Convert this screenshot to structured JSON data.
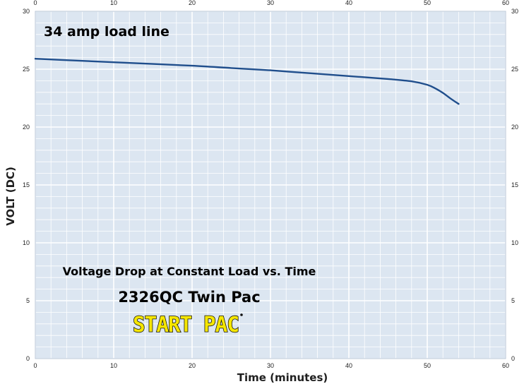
{
  "annotation": "34 amp load line",
  "chart_title_line1": "Voltage Drop at Constant Load vs. Time",
  "chart_title_line2": "2326QC Twin Pac",
  "logo_text": "START PAC",
  "colors": {
    "plot_background": "#dce6f1",
    "grid_line": "#ffffff",
    "series_line": "#1f4e8c",
    "logo_fill": "#f5e600"
  },
  "chart_data": {
    "type": "line",
    "xlabel": "Time (minutes)",
    "ylabel": "VOLT (DC)",
    "xlim": [
      0,
      60
    ],
    "ylim": [
      0,
      30
    ],
    "x_major_ticks": [
      0,
      10,
      20,
      30,
      40,
      50,
      60
    ],
    "y_major_ticks": [
      0,
      5,
      10,
      15,
      20,
      25,
      30
    ],
    "x_minor_step": 2,
    "y_minor_step": 1,
    "grid": true,
    "tick_labels_on_all_sides": true,
    "series": [
      {
        "x": [
          0,
          5,
          10,
          15,
          20,
          25,
          30,
          35,
          40,
          45,
          48,
          50,
          51,
          52,
          53,
          54
        ],
        "y": [
          25.9,
          25.75,
          25.6,
          25.45,
          25.3,
          25.1,
          24.9,
          24.65,
          24.4,
          24.15,
          23.95,
          23.65,
          23.35,
          22.95,
          22.45,
          22.0
        ]
      }
    ]
  }
}
